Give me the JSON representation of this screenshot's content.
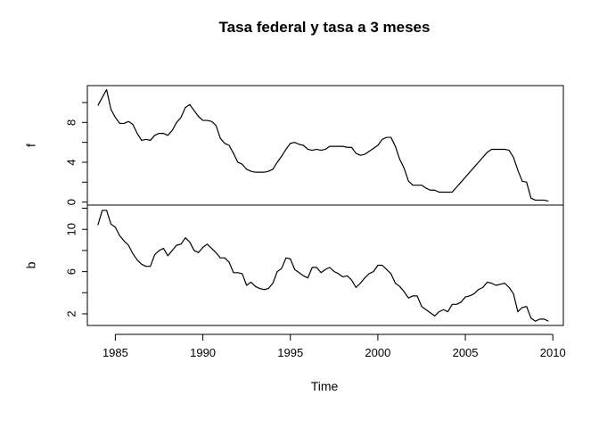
{
  "chart_data": {
    "type": "line",
    "title": "Tasa federal y tasa a 3 meses",
    "xlabel": "Time",
    "xlim": [
      1983.4,
      2010.6
    ],
    "x_ticks": [
      1985,
      1990,
      1995,
      2000,
      2005,
      2010
    ],
    "x_tick_labels": [
      "1985",
      "1990",
      "1995",
      "2000",
      "2005",
      "2010"
    ],
    "grid": false,
    "legend": "none",
    "panels": [
      {
        "ylabel": "f",
        "ylim": [
          -0.3,
          11.7
        ],
        "y_ticks": [
          0,
          2,
          4,
          6,
          8,
          10
        ],
        "y_tick_labels": [
          "0",
          "",
          "4",
          "",
          "8",
          ""
        ],
        "series": [
          {
            "x": [
              1984.0,
              1984.25,
              1984.5,
              1984.75,
              1985.0,
              1985.25,
              1985.5,
              1985.75,
              1986.0,
              1986.25,
              1986.5,
              1986.75,
              1987.0,
              1987.25,
              1987.5,
              1987.75,
              1988.0,
              1988.25,
              1988.5,
              1988.75,
              1989.0,
              1989.25,
              1989.5,
              1989.75,
              1990.0,
              1990.25,
              1990.5,
              1990.75,
              1991.0,
              1991.25,
              1991.5,
              1991.75,
              1992.0,
              1992.25,
              1992.5,
              1992.75,
              1993.0,
              1993.25,
              1993.5,
              1993.75,
              1994.0,
              1994.25,
              1994.5,
              1994.75,
              1995.0,
              1995.25,
              1995.5,
              1995.75,
              1996.0,
              1996.25,
              1996.5,
              1996.75,
              1997.0,
              1997.25,
              1997.5,
              1997.75,
              1998.0,
              1998.25,
              1998.5,
              1998.75,
              1999.0,
              1999.25,
              1999.5,
              1999.75,
              2000.0,
              2000.25,
              2000.5,
              2000.75,
              2001.0,
              2001.25,
              2001.5,
              2001.75,
              2002.0,
              2002.25,
              2002.5,
              2002.75,
              2003.0,
              2003.25,
              2003.5,
              2003.75,
              2004.0,
              2004.25,
              2004.5,
              2004.75,
              2005.0,
              2005.25,
              2005.5,
              2005.75,
              2006.0,
              2006.25,
              2006.5,
              2006.75,
              2007.0,
              2007.25,
              2007.5,
              2007.75,
              2008.0,
              2008.25,
              2008.5,
              2008.75,
              2009.0,
              2009.25,
              2009.5,
              2009.75
            ],
            "values": [
              9.7,
              10.5,
              11.3,
              9.3,
              8.5,
              7.9,
              7.9,
              8.1,
              7.8,
              6.9,
              6.2,
              6.3,
              6.2,
              6.7,
              6.9,
              6.9,
              6.7,
              7.2,
              8.0,
              8.5,
              9.5,
              9.8,
              9.2,
              8.6,
              8.2,
              8.2,
              8.1,
              7.7,
              6.4,
              5.9,
              5.7,
              4.9,
              4.0,
              3.8,
              3.3,
              3.1,
              3.0,
              3.0,
              3.0,
              3.1,
              3.3,
              4.0,
              4.6,
              5.3,
              5.9,
              6.0,
              5.8,
              5.7,
              5.3,
              5.2,
              5.3,
              5.2,
              5.3,
              5.6,
              5.6,
              5.6,
              5.6,
              5.5,
              5.5,
              4.9,
              4.7,
              4.8,
              5.1,
              5.4,
              5.7,
              6.3,
              6.5,
              6.5,
              5.6,
              4.3,
              3.4,
              2.1,
              1.7,
              1.7,
              1.7,
              1.4,
              1.2,
              1.2,
              1.0,
              1.0,
              1.0,
              1.0,
              1.5,
              2.0,
              2.5,
              3.0,
              3.5,
              4.0,
              4.5,
              5.0,
              5.3,
              5.3,
              5.3,
              5.3,
              5.2,
              4.5,
              3.2,
              2.1,
              2.0,
              0.4,
              0.2,
              0.2,
              0.2,
              0.1
            ]
          }
        ]
      },
      {
        "ylabel": "b",
        "ylim": [
          0.9,
          12.3
        ],
        "y_ticks": [
          2,
          4,
          6,
          8,
          10,
          12
        ],
        "y_tick_labels": [
          "2",
          "",
          "6",
          "",
          "10",
          ""
        ],
        "series": [
          {
            "x": [
              1984.0,
              1984.25,
              1984.5,
              1984.75,
              1985.0,
              1985.25,
              1985.5,
              1985.75,
              1986.0,
              1986.25,
              1986.5,
              1986.75,
              1987.0,
              1987.25,
              1987.5,
              1987.75,
              1988.0,
              1988.25,
              1988.5,
              1988.75,
              1989.0,
              1989.25,
              1989.5,
              1989.75,
              1990.0,
              1990.25,
              1990.5,
              1990.75,
              1991.0,
              1991.25,
              1991.5,
              1991.75,
              1992.0,
              1992.25,
              1992.5,
              1992.75,
              1993.0,
              1993.25,
              1993.5,
              1993.75,
              1994.0,
              1994.25,
              1994.5,
              1994.75,
              1995.0,
              1995.25,
              1995.5,
              1995.75,
              1996.0,
              1996.25,
              1996.5,
              1996.75,
              1997.0,
              1997.25,
              1997.5,
              1997.75,
              1998.0,
              1998.25,
              1998.5,
              1998.75,
              1999.0,
              1999.25,
              1999.5,
              1999.75,
              2000.0,
              2000.25,
              2000.5,
              2000.75,
              2001.0,
              2001.25,
              2001.5,
              2001.75,
              2002.0,
              2002.25,
              2002.5,
              2002.75,
              2003.0,
              2003.25,
              2003.5,
              2003.75,
              2004.0,
              2004.25,
              2004.5,
              2004.75,
              2005.0,
              2005.25,
              2005.5,
              2005.75,
              2006.0,
              2006.25,
              2006.5,
              2006.75,
              2007.0,
              2007.25,
              2007.5,
              2007.75,
              2008.0,
              2008.25,
              2008.5,
              2008.75,
              2009.0,
              2009.25,
              2009.5,
              2009.75
            ],
            "values": [
              10.4,
              11.8,
              11.8,
              10.5,
              10.2,
              9.4,
              8.9,
              8.5,
              7.7,
              7.1,
              6.7,
              6.5,
              6.5,
              7.6,
              8.0,
              8.2,
              7.5,
              8.0,
              8.5,
              8.6,
              9.2,
              8.8,
              8.0,
              7.8,
              8.3,
              8.6,
              8.2,
              7.8,
              7.3,
              7.3,
              6.9,
              5.9,
              5.9,
              5.8,
              4.7,
              5.0,
              4.6,
              4.4,
              4.3,
              4.4,
              4.9,
              6.0,
              6.3,
              7.3,
              7.2,
              6.2,
              5.9,
              5.6,
              5.4,
              6.4,
              6.4,
              5.9,
              6.2,
              6.4,
              6.0,
              5.8,
              5.5,
              5.6,
              5.2,
              4.5,
              4.9,
              5.4,
              5.8,
              6.0,
              6.6,
              6.6,
              6.2,
              5.8,
              4.9,
              4.6,
              4.1,
              3.5,
              3.7,
              3.7,
              2.7,
              2.4,
              2.1,
              1.8,
              2.2,
              2.4,
              2.2,
              2.9,
              2.9,
              3.1,
              3.6,
              3.7,
              3.9,
              4.3,
              4.5,
              5.0,
              4.9,
              4.7,
              4.8,
              4.9,
              4.5,
              3.9,
              2.2,
              2.6,
              2.7,
              1.6,
              1.3,
              1.5,
              1.5,
              1.3
            ]
          }
        ]
      }
    ]
  }
}
